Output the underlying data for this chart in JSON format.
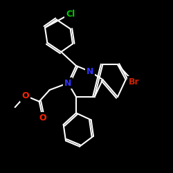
{
  "background_color": "#000000",
  "bond_color": "#ffffff",
  "atom_colors": {
    "N": "#3333ff",
    "O": "#ff2200",
    "Cl": "#00cc00",
    "Br": "#cc2200",
    "C": "#ffffff"
  },
  "line_width": 1.5,
  "font_size": 9
}
